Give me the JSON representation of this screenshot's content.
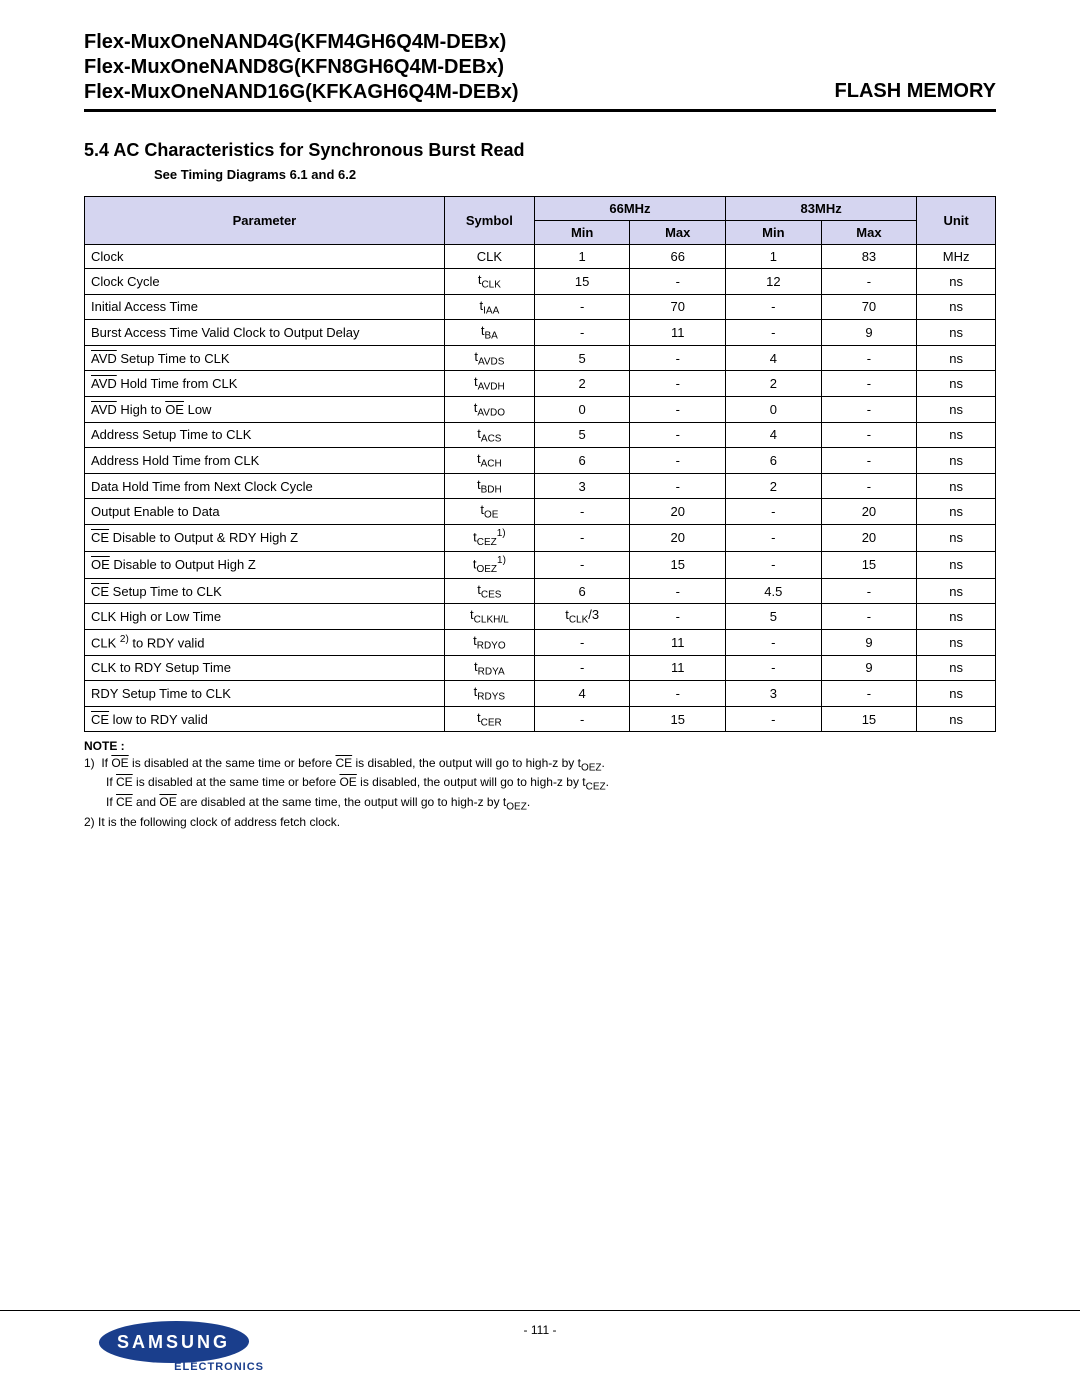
{
  "header": {
    "line1": "Flex-MuxOneNAND4G(KFM4GH6Q4M-DEBx)",
    "line2": "Flex-MuxOneNAND8G(KFN8GH6Q4M-DEBx)",
    "line3": "Flex-MuxOneNAND16G(KFKAGH6Q4M-DEBx)",
    "right": "FLASH MEMORY"
  },
  "section": {
    "title": "5.4 AC Characteristics for Synchronous Burst Read",
    "subtitle": "See Timing Diagrams 6.1 and 6.2"
  },
  "table": {
    "header_bg": "#d5d5f0",
    "border_color": "#000000",
    "columns": {
      "param": "Parameter",
      "symbol": "Symbol",
      "freq1": "66MHz",
      "freq2": "83MHz",
      "min": "Min",
      "max": "Max",
      "unit": "Unit"
    },
    "rows": [
      {
        "param": "Clock",
        "param_html": "Clock",
        "sym_html": "CLK",
        "min1": "1",
        "max1": "66",
        "min2": "1",
        "max2": "83",
        "unit": "MHz"
      },
      {
        "param": "Clock Cycle",
        "param_html": "Clock Cycle",
        "sym_html": "t<span class='sub'>CLK</span>",
        "min1": "15",
        "max1": "-",
        "min2": "12",
        "max2": "-",
        "unit": "ns"
      },
      {
        "param": "Initial Access Time",
        "param_html": "Initial Access Time",
        "sym_html": "t<span class='sub'>IAA</span>",
        "min1": "-",
        "max1": "70",
        "min2": "-",
        "max2": "70",
        "unit": "ns"
      },
      {
        "param": "Burst Access Time Valid Clock to Output Delay",
        "param_html": "Burst Access Time Valid Clock to Output Delay",
        "sym_html": "t<span class='sub'>BA</span>",
        "min1": "-",
        "max1": "11",
        "min2": "-",
        "max2": "9",
        "unit": "ns"
      },
      {
        "param": "AVD Setup Time to CLK",
        "param_html": "<span class='ovl'>AVD</span> Setup Time to CLK",
        "sym_html": "t<span class='sub'>AVDS</span>",
        "min1": "5",
        "max1": "-",
        "min2": "4",
        "max2": "-",
        "unit": "ns"
      },
      {
        "param": "AVD Hold Time from CLK",
        "param_html": "<span class='ovl'>AVD</span> Hold Time from CLK",
        "sym_html": "t<span class='sub'>AVDH</span>",
        "min1": "2",
        "max1": "-",
        "min2": "2",
        "max2": "-",
        "unit": "ns"
      },
      {
        "param": "AVD High to OE Low",
        "param_html": "<span class='ovl'>AVD</span> High to <span class='ovl'>OE</span> Low",
        "sym_html": "t<span class='sub'>AVDO</span>",
        "min1": "0",
        "max1": "-",
        "min2": "0",
        "max2": "-",
        "unit": "ns"
      },
      {
        "param": "Address Setup Time to CLK",
        "param_html": "Address Setup Time to CLK",
        "sym_html": "t<span class='sub'>ACS</span>",
        "min1": "5",
        "max1": "-",
        "min2": "4",
        "max2": "-",
        "unit": "ns"
      },
      {
        "param": "Address Hold Time from CLK",
        "param_html": "Address Hold Time from CLK",
        "sym_html": "t<span class='sub'>ACH</span>",
        "min1": "6",
        "max1": "-",
        "min2": "6",
        "max2": "-",
        "unit": "ns"
      },
      {
        "param": "Data Hold Time from Next Clock Cycle",
        "param_html": "Data Hold Time from Next Clock Cycle",
        "sym_html": "t<span class='sub'>BDH</span>",
        "min1": "3",
        "max1": "-",
        "min2": "2",
        "max2": "-",
        "unit": "ns"
      },
      {
        "param": "Output Enable to Data",
        "param_html": "Output Enable to Data",
        "sym_html": "t<span class='sub'>OE</span>",
        "min1": "-",
        "max1": "20",
        "min2": "-",
        "max2": "20",
        "unit": "ns"
      },
      {
        "param": "CE Disable to Output & RDY High Z",
        "param_html": "<span class='ovl'>CE</span> Disable to Output &amp; RDY High Z",
        "sym_html": "t<span class='sub'>CEZ</span><span class='sup'>1)</span>",
        "min1": "-",
        "max1": "20",
        "min2": "-",
        "max2": "20",
        "unit": "ns"
      },
      {
        "param": "OE Disable to Output High Z",
        "param_html": "<span class='ovl'>OE</span> Disable to Output High Z",
        "sym_html": "t<span class='sub'>OEZ</span><span class='sup'>1)</span>",
        "min1": "-",
        "max1": "15",
        "min2": "-",
        "max2": "15",
        "unit": "ns"
      },
      {
        "param": "CE Setup Time to CLK",
        "param_html": "<span class='ovl'>CE</span> Setup Time to CLK",
        "sym_html": "t<span class='sub'>CES</span>",
        "min1": "6",
        "max1": "-",
        "min2": "4.5",
        "max2": "-",
        "unit": "ns"
      },
      {
        "param": "CLK High or Low Time",
        "param_html": "CLK High or Low Time",
        "sym_html": "t<span class='sub'>CLKH/L</span>",
        "min1": "t<span class='sub'>CLK</span>/3",
        "max1": "-",
        "min2": "5",
        "max2": "-",
        "unit": "ns"
      },
      {
        "param": "CLK to RDY valid",
        "param_html": "CLK <span class='sup'>2)</span> to RDY valid",
        "sym_html": "t<span class='sub'>RDYO</span>",
        "min1": "-",
        "max1": "11",
        "min2": "-",
        "max2": "9",
        "unit": "ns"
      },
      {
        "param": "CLK to RDY Setup Time",
        "param_html": "CLK to RDY Setup Time",
        "sym_html": "t<span class='sub'>RDYA</span>",
        "min1": "-",
        "max1": "11",
        "min2": "-",
        "max2": "9",
        "unit": "ns"
      },
      {
        "param": "RDY Setup Time to CLK",
        "param_html": "RDY Setup Time to CLK",
        "sym_html": "t<span class='sub'>RDYS</span>",
        "min1": "4",
        "max1": "-",
        "min2": "3",
        "max2": "-",
        "unit": "ns"
      },
      {
        "param": "CE low to RDY valid",
        "param_html": "<span class='ovl'>CE</span> low to RDY  valid",
        "sym_html": "t<span class='sub'>CER</span>",
        "min1": "-",
        "max1": "15",
        "min2": "-",
        "max2": "15",
        "unit": "ns"
      }
    ]
  },
  "notes": {
    "title": "NOTE :",
    "n1a_html": "1)&nbsp; If <span class='ovl'>OE</span> is disabled at the same time or before <span class='ovl'>CE</span> is disabled, the output will go to high-z by t<span class='sub'>OEZ</span>.",
    "n1b_html": "If <span class='ovl'>CE</span> is disabled at the same time or before <span class='ovl'>OE</span> is disabled, the output will go to high-z by t<span class='sub'>CEZ</span>.",
    "n1c_html": "If <span class='ovl'>CE</span> and <span class='ovl'>OE</span> are disabled at the same time, the output will go to high-z by t<span class='sub'>OEZ</span>.",
    "n2": "2) It is the following clock of address fetch clock."
  },
  "footer": {
    "pageno": "- 111 -",
    "logo_text": "SAMSUNG",
    "logo_sub": "ELECTRONICS",
    "logo_bg": "#1a3e8c"
  }
}
